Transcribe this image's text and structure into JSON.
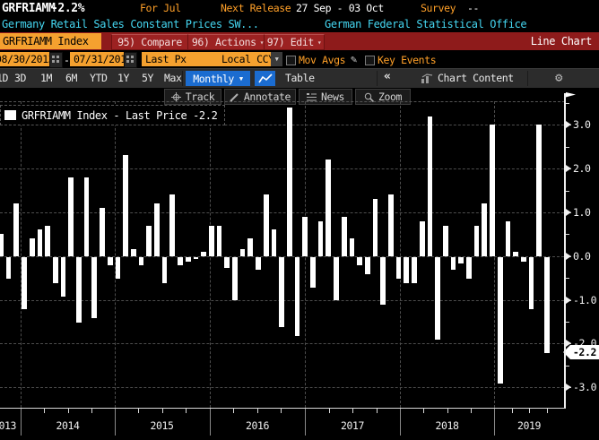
{
  "header": {
    "ticker": "GRFRIAMM",
    "change": "-2.2%",
    "for_label": "For Jul",
    "next_release_label": "Next Release",
    "next_release_value": "27 Sep - 03 Oct",
    "survey_label": "Survey",
    "survey_value": "--",
    "description": "Germany Retail Sales Constant Prices SW...",
    "source": "German Federal Statistical Office"
  },
  "tabbar": {
    "tab": "GRFRIAMM Index",
    "compare": "95) Compare",
    "actions": "96) Actions",
    "edit": "97) Edit",
    "chart_type": "Line Chart"
  },
  "controls": {
    "date_from": "08/30/2013",
    "date_dash": "-",
    "date_to": "07/31/2019",
    "field": "Last Px",
    "currency": "Local CCY",
    "mov_avgs": "Mov Avgs",
    "key_events": "Key Events"
  },
  "periodbar": {
    "periods": [
      "1D",
      "3D",
      "1M",
      "6M",
      "YTD",
      "1Y",
      "5Y",
      "Max"
    ],
    "frequency": "Monthly",
    "table_label": "Table",
    "collapse": "«",
    "chart_content": "Chart Content"
  },
  "chart_toolbar": {
    "track": "Track",
    "annotate": "Annotate",
    "news": "News",
    "zoom": "Zoom"
  },
  "legend": {
    "text": "GRFRIAMM Index - Last Price -2.2"
  },
  "colors": {
    "amber_text": "#ffa028",
    "orange_field": "#f5a12f",
    "cyan_text": "#45d7f2",
    "maroon_bar": "#8e1b1b",
    "blue_button": "#1b6cd0",
    "bar_color": "#ffffff",
    "grid_color": "#4d4d4d"
  },
  "chart_data": {
    "type": "bar",
    "title": "GRFRIAMM Index - Last Price",
    "last_price_label": "-2.2",
    "ylim": [
      -3.5,
      3.5
    ],
    "grid": true,
    "legend_position": "top-left",
    "yticks": [
      3.0,
      2.0,
      1.0,
      0.0,
      -1.0,
      -2.0,
      -3.0
    ],
    "ytick_labels": [
      "3.0",
      "2.0",
      "1.0",
      "0.0",
      "-1.0",
      "-2.0",
      "-3.0"
    ],
    "year_labels": [
      "2013",
      "2014",
      "2015",
      "2016",
      "2017",
      "2018",
      "2019"
    ],
    "x": [
      "2013-09",
      "2013-10",
      "2013-11",
      "2013-12",
      "2014-01",
      "2014-02",
      "2014-03",
      "2014-04",
      "2014-05",
      "2014-06",
      "2014-07",
      "2014-08",
      "2014-09",
      "2014-10",
      "2014-11",
      "2014-12",
      "2015-01",
      "2015-02",
      "2015-03",
      "2015-04",
      "2015-05",
      "2015-06",
      "2015-07",
      "2015-08",
      "2015-09",
      "2015-10",
      "2015-11",
      "2015-12",
      "2016-01",
      "2016-02",
      "2016-03",
      "2016-04",
      "2016-05",
      "2016-06",
      "2016-07",
      "2016-08",
      "2016-09",
      "2016-10",
      "2016-11",
      "2016-12",
      "2017-01",
      "2017-02",
      "2017-03",
      "2017-04",
      "2017-05",
      "2017-06",
      "2017-07",
      "2017-08",
      "2017-09",
      "2017-10",
      "2017-11",
      "2017-12",
      "2018-01",
      "2018-02",
      "2018-03",
      "2018-04",
      "2018-05",
      "2018-06",
      "2018-07",
      "2018-08",
      "2018-09",
      "2018-10",
      "2018-11",
      "2018-12",
      "2019-01",
      "2019-02",
      "2019-03",
      "2019-04",
      "2019-05",
      "2019-06",
      "2019-07"
    ],
    "values": [
      0.5,
      -0.5,
      1.2,
      -1.2,
      0.4,
      0.6,
      0.7,
      -0.6,
      -0.9,
      1.8,
      -1.5,
      1.8,
      -1.4,
      1.1,
      -0.2,
      -0.5,
      2.3,
      0.15,
      -0.2,
      0.7,
      1.2,
      -0.6,
      1.4,
      -0.2,
      -0.1,
      -0.05,
      0.1,
      0.7,
      0.7,
      -0.25,
      -1.0,
      0.15,
      0.4,
      -0.3,
      1.4,
      0.6,
      -1.6,
      3.4,
      -1.8,
      0.9,
      -0.7,
      0.8,
      2.2,
      -1.0,
      0.9,
      0.4,
      -0.2,
      -0.4,
      1.3,
      -1.1,
      1.4,
      -0.5,
      -0.6,
      -0.6,
      0.8,
      3.2,
      -1.9,
      0.7,
      -0.3,
      -0.15,
      -0.5,
      0.7,
      1.2,
      3.0,
      -2.9,
      0.8,
      0.1,
      -0.1,
      -1.2,
      3.0,
      -2.2
    ]
  }
}
